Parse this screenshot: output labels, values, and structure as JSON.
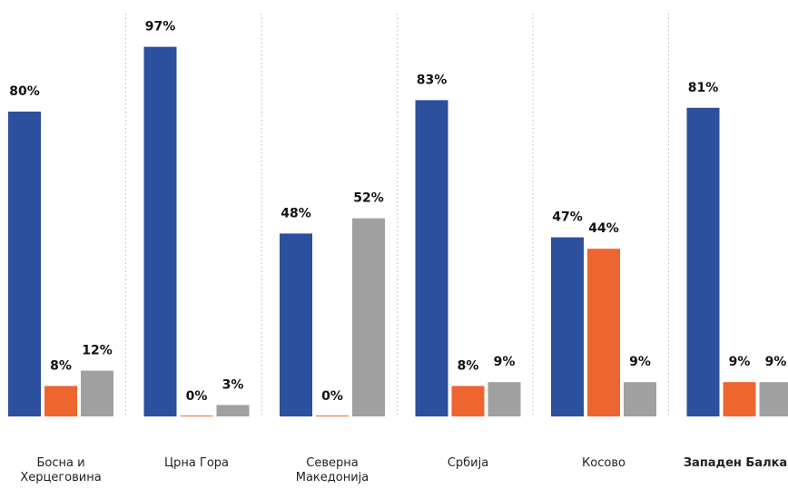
{
  "chart_data": {
    "type": "bar",
    "categories": [
      "Босна и Херцеговина",
      "Црна Гора",
      "Северна Македонија",
      "Србија",
      "Косово",
      "Западен Балкан"
    ],
    "emphasized_category": 5,
    "series": [
      {
        "color": "#2c4f9e",
        "values": [
          80,
          97,
          48,
          83,
          47,
          81
        ],
        "value_labels": [
          "80%",
          "97%",
          "48%",
          "83%",
          "47%",
          "81%"
        ]
      },
      {
        "color": "#ee6530",
        "values": [
          8,
          0,
          0,
          8,
          44,
          9
        ],
        "value_labels": [
          "8%",
          "0%",
          "0%",
          "8%",
          "44%",
          "9%"
        ]
      },
      {
        "color": "#a0a0a0",
        "values": [
          12,
          3,
          52,
          9,
          9,
          9
        ],
        "value_labels": [
          "12%",
          "3%",
          "52%",
          "9%",
          "9%",
          "9%"
        ]
      }
    ],
    "ylim": [
      0,
      100
    ]
  }
}
